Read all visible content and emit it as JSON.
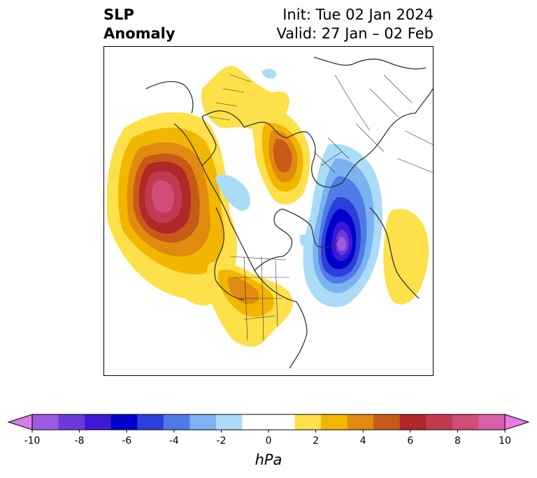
{
  "title": {
    "left_line1": "SLP",
    "left_line2": "Anomaly",
    "init": "Init: Tue 02 Jan 2024",
    "valid": "Valid: 27 Jan – 02 Feb"
  },
  "colorbar": {
    "unit": "hPa",
    "ticks": [
      "-10",
      "-8",
      "-6",
      "-4",
      "-2",
      "0",
      "2",
      "4",
      "6",
      "8",
      "10"
    ],
    "low_extend_color": "#d67be6",
    "high_extend_color": "#e87ae0",
    "colors": [
      "#d67be6",
      "#9e5ae0",
      "#6b3adb",
      "#3d19d6",
      "#0000cc",
      "#2b3fdb",
      "#507ae6",
      "#7ab3f0",
      "#aadcf7",
      "#ffffff",
      "#ffffff",
      "#fde04a",
      "#f2b500",
      "#e08a10",
      "#c85a18",
      "#b02828",
      "#c23a50",
      "#d04e78",
      "#d860a8",
      "#e87ae0"
    ]
  },
  "map": {
    "anomaly_colors": {
      "pos1": "#fde04a",
      "pos2": "#f2b500",
      "pos3": "#e08a10",
      "pos4": "#c85a18",
      "pos5": "#b02828",
      "pos6": "#c23a50",
      "pos7": "#d04e78",
      "neg1": "#aadcf7",
      "neg2": "#7ab3f0",
      "neg3": "#507ae6",
      "neg4": "#2b3fdb",
      "neg5": "#0000cc",
      "neg6": "#3d19d6",
      "neg7": "#6b3adb",
      "neg8": "#9e5ae0"
    },
    "coastline_color": "#333333"
  }
}
